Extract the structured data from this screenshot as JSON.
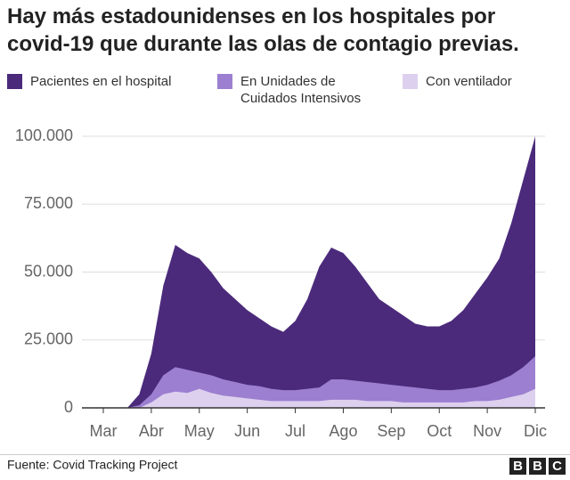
{
  "chart_data": {
    "type": "area",
    "title": "Hay más estadounidenses en los hospitales por covid-19 que durante las olas de contagio previas.",
    "categories": [
      "Mar",
      null,
      null,
      null,
      "Abr",
      null,
      null,
      null,
      "May",
      null,
      null,
      null,
      "Jun",
      null,
      null,
      null,
      "Jul",
      null,
      null,
      null,
      "Ago",
      null,
      null,
      null,
      "Sep",
      null,
      null,
      null,
      "Oct",
      null,
      null,
      null,
      "Nov",
      null,
      null,
      null,
      "Dic"
    ],
    "series": [
      {
        "name": "Pacientes en el hospital",
        "color": "#4b2a7b",
        "values": [
          0,
          0,
          0,
          5000,
          20000,
          45000,
          60000,
          57000,
          55000,
          50000,
          44000,
          40000,
          36000,
          33000,
          30000,
          28000,
          32000,
          40000,
          52000,
          59000,
          57000,
          52000,
          46000,
          40000,
          37000,
          34000,
          31000,
          30000,
          30000,
          32000,
          36000,
          42000,
          48000,
          55000,
          68000,
          84000,
          100000
        ]
      },
      {
        "name": "En Unidades de Cuidados Intensivos",
        "color": "#9c7fd0",
        "values": [
          0,
          0,
          0,
          1000,
          5000,
          12000,
          15000,
          14000,
          13000,
          12000,
          10500,
          9500,
          8500,
          8000,
          7000,
          6500,
          6500,
          7000,
          7500,
          10500,
          10500,
          10000,
          9500,
          9000,
          8500,
          8000,
          7500,
          7000,
          6500,
          6500,
          7000,
          7500,
          8500,
          10000,
          12000,
          15000,
          19000
        ]
      },
      {
        "name": "Con ventilador",
        "color": "#ddd0ee",
        "values": [
          0,
          0,
          0,
          0,
          2000,
          5000,
          6000,
          5500,
          7000,
          5500,
          4500,
          4000,
          3500,
          3000,
          2500,
          2500,
          2500,
          2500,
          2500,
          3000,
          3000,
          3000,
          2500,
          2500,
          2500,
          2000,
          2000,
          2000,
          2000,
          2000,
          2000,
          2500,
          2500,
          3000,
          4000,
          5000,
          7000
        ]
      }
    ],
    "ylim": [
      0,
      100000
    ],
    "yticks": [
      0,
      {
        "value": 25000,
        "label": "25.000"
      },
      {
        "value": 50000,
        "label": "50.000"
      },
      {
        "value": 75000,
        "label": "75.000"
      },
      {
        "value": 100000,
        "label": "100.000"
      }
    ],
    "grid": true,
    "source": "Fuente: Covid Tracking Project",
    "logo": [
      "B",
      "B",
      "C"
    ]
  }
}
